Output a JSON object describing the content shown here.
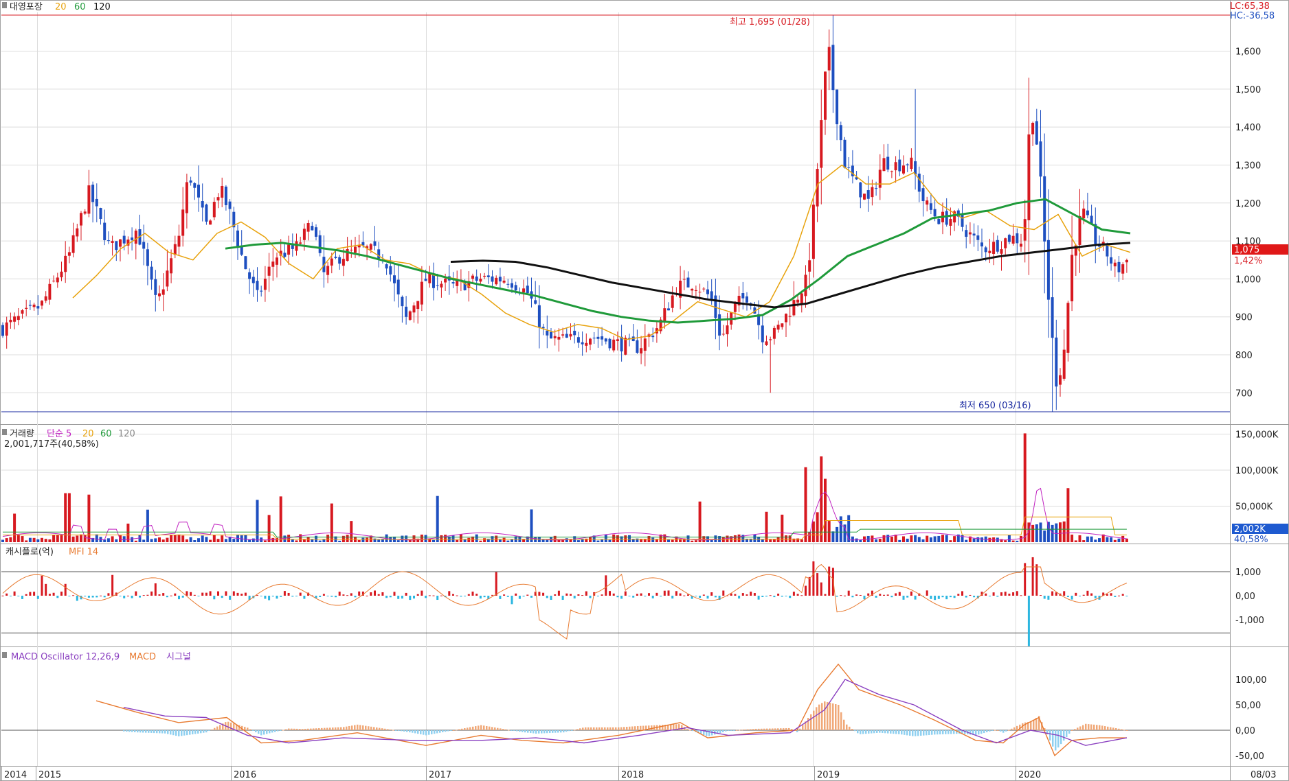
{
  "colors": {
    "up": "#d71920",
    "down": "#1e4fc0",
    "ma20": "#e8a20c",
    "ma60": "#1f9a3a",
    "ma120": "#111111",
    "vol_ma5": "#c020c0",
    "grid": "#dcdcdc",
    "cashflow_up": "#d71920",
    "cashflow_down": "#2bb6e0",
    "mfi": "#e87a30",
    "macd": "#e87a30",
    "signal": "#8a3fc0",
    "osc_pos": "#f0a878",
    "osc_neg": "#8fd0f0",
    "high_line": "#d71920",
    "low_line": "#1a2aa0"
  },
  "price_panel": {
    "legend": {
      "name": "대영포장",
      "ma1": "20",
      "ma2": "60",
      "ma3": "120"
    },
    "lc": "LC:65,38",
    "hc": "HC:-36,58",
    "high_label": "최고 1,695 (01/28)",
    "low_label": "최저 650 (03/16)",
    "current_price": "1,075",
    "current_change": "1,42%"
  },
  "volume_panel": {
    "legend": {
      "name": "거래량",
      "ma_label": "단순 5",
      "ma2": "20",
      "ma3": "60",
      "ma4": "120"
    },
    "current": "2,001,717주(40,58%)",
    "tag_value": "2,002K",
    "tag_pct": "40,58%"
  },
  "cashflow_panel": {
    "legend": {
      "name": "캐시플로(억)",
      "mfi": "MFI 14"
    }
  },
  "macd_panel": {
    "legend": {
      "name": "MACD Oscillator 12,26,9",
      "macd": "MACD",
      "signal": "시그널"
    }
  },
  "x_axis": {
    "labels": [
      "2014",
      "2015",
      "2016",
      "2017",
      "2018",
      "2019",
      "2020"
    ],
    "end_label": "08/03"
  },
  "chart_data": [
    {
      "type": "candlestick",
      "title": "대영포장",
      "yticks": [
        "700",
        "800",
        "900",
        "1,000",
        "1,100",
        "1,200",
        "1,300",
        "1,400",
        "1,500",
        "1,600"
      ],
      "ylim": [
        650,
        1695
      ],
      "high": {
        "value": 1695,
        "date": "01/28"
      },
      "low": {
        "value": 650,
        "date": "03/16"
      },
      "series": [
        {
          "name": "20",
          "values": [
            950,
            1010,
            1080,
            1120,
            1070,
            1050,
            1120,
            1150,
            1110,
            1040,
            1000,
            1080,
            1090,
            1050,
            1040,
            1010,
            1000,
            960,
            910,
            880,
            860,
            880,
            870,
            840,
            850,
            890,
            940,
            920,
            900,
            940,
            1060,
            1250,
            1300,
            1250,
            1250,
            1280,
            1200,
            1160,
            1180,
            1140,
            1130,
            1170,
            1060,
            1090,
            1070
          ]
        },
        {
          "name": "60",
          "values": [
            1080,
            1090,
            1095,
            1085,
            1075,
            1060,
            1040,
            1020,
            1000,
            985,
            970,
            955,
            935,
            915,
            900,
            890,
            885,
            890,
            895,
            905,
            945,
            1000,
            1060,
            1090,
            1120,
            1160,
            1170,
            1180,
            1200,
            1210,
            1170,
            1130,
            1120
          ]
        },
        {
          "name": "120",
          "values": [
            1045,
            1048,
            1045,
            1030,
            1010,
            990,
            975,
            960,
            945,
            935,
            925,
            935,
            960,
            985,
            1010,
            1030,
            1045,
            1060,
            1070,
            1080,
            1090,
            1095
          ]
        }
      ]
    },
    {
      "type": "bar",
      "title": "거래량",
      "yticks": [
        "50,000K",
        "100,000K",
        "150,000K"
      ],
      "peak_values": [
        151000,
        119000,
        104000,
        88000,
        75000,
        68000,
        66000
      ]
    },
    {
      "type": "bar",
      "title": "캐시플로(억)",
      "yticks": [
        "-1,000",
        "0,00",
        "1,000"
      ]
    },
    {
      "type": "area",
      "title": "MACD Oscillator 12,26,9",
      "yticks": [
        "-50,00",
        "0,00",
        "50,00",
        "100,00"
      ]
    }
  ]
}
